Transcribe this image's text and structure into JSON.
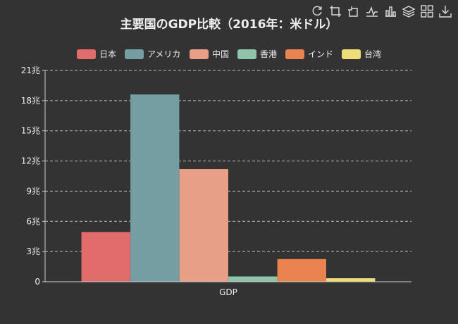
{
  "toolbox": [
    {
      "name": "restore-icon"
    },
    {
      "name": "zoom-icon"
    },
    {
      "name": "zoom-back-icon"
    },
    {
      "name": "line-chart-icon"
    },
    {
      "name": "bar-chart-icon"
    },
    {
      "name": "stack-icon"
    },
    {
      "name": "tiled-icon"
    },
    {
      "name": "download-icon"
    }
  ],
  "chart_data": {
    "type": "bar",
    "title": "主要国のGDP比較（2016年：米ドル）",
    "categories": [
      "GDP"
    ],
    "series": [
      {
        "name": "日本",
        "values": [
          4.95
        ],
        "color": "#e06c6c"
      },
      {
        "name": "アメリカ",
        "values": [
          18.62
        ],
        "color": "#759ea3"
      },
      {
        "name": "中国",
        "values": [
          11.2
        ],
        "color": "#e89f88"
      },
      {
        "name": "香港",
        "values": [
          0.53
        ],
        "color": "#8fc4aa"
      },
      {
        "name": "インド",
        "values": [
          2.26
        ],
        "color": "#eb8350"
      },
      {
        "name": "台湾",
        "values": [
          0.35
        ],
        "color": "#efdd79"
      }
    ],
    "yticks": [
      {
        "value": 0,
        "label": "0"
      },
      {
        "value": 3,
        "label": "3兆"
      },
      {
        "value": 6,
        "label": "6兆"
      },
      {
        "value": 9,
        "label": "9兆"
      },
      {
        "value": 12,
        "label": "12兆"
      },
      {
        "value": 15,
        "label": "15兆"
      },
      {
        "value": 18,
        "label": "18兆"
      },
      {
        "value": 21,
        "label": "21兆"
      }
    ],
    "ylim": [
      0,
      21
    ],
    "grid": true,
    "legend_position": "top"
  }
}
